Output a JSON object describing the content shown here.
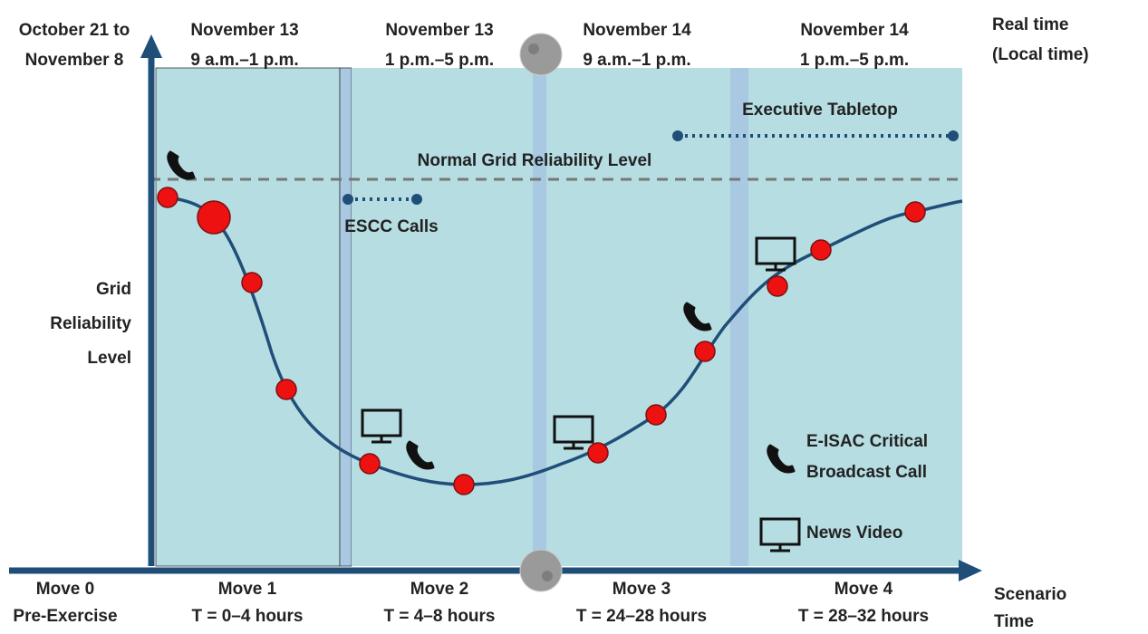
{
  "real_time_labels": [
    [
      "October 21 to",
      "November 8"
    ],
    [
      "November 13",
      "9 a.m.–1 p.m."
    ],
    [
      "November 13",
      "1 p.m.–5 p.m."
    ],
    [
      "November 14",
      "9 a.m.–1 p.m."
    ],
    [
      "November 14",
      "1 p.m.–5 p.m."
    ]
  ],
  "real_time_axis": [
    "Real time",
    "(Local time)"
  ],
  "y_axis_label": [
    "Grid",
    "Reliability",
    "Level"
  ],
  "normal_level": "Normal Grid Reliability Level",
  "escc_calls": "ESCC Calls",
  "executive_tabletop": "Executive Tabletop",
  "legend": {
    "call": [
      "E-ISAC Critical",
      "Broadcast Call"
    ],
    "video": "News Video"
  },
  "moves": [
    [
      "Move 0",
      "Pre-Exercise"
    ],
    [
      "Move 1",
      "T = 0–4 hours"
    ],
    [
      "Move 2",
      "T = 4–8 hours"
    ],
    [
      "Move 3",
      "T = 24–28 hours"
    ],
    [
      "Move 4",
      "T = 28–32 hours"
    ]
  ],
  "scenario_axis": [
    "Scenario",
    "Time"
  ]
}
